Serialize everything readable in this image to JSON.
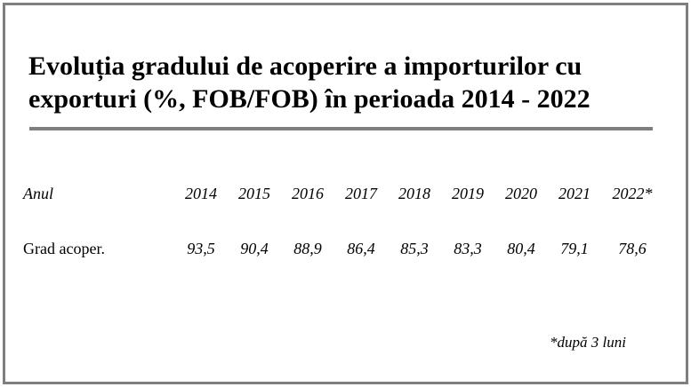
{
  "title": {
    "line1": "Evoluția gradului de acoperire a importurilor cu",
    "line2": "exporturi (%, FOB/FOB) în perioada 2014 - 2022"
  },
  "table": {
    "header_label": "Anul",
    "row_label": "Grad acoper.",
    "years": [
      "2014",
      "2015",
      "2016",
      "2017",
      "2018",
      "2019",
      "2020",
      "2021",
      "2022*"
    ],
    "values": [
      "93,5",
      "90,4",
      "88,9",
      "86,4",
      "85,3",
      "83,3",
      "80,4",
      "79,1",
      "78,6"
    ]
  },
  "footnote": "*după 3 luni",
  "colors": {
    "border": "#7f7f7f",
    "rule": "#7f7f7f",
    "text": "#000000",
    "background": "#ffffff"
  }
}
